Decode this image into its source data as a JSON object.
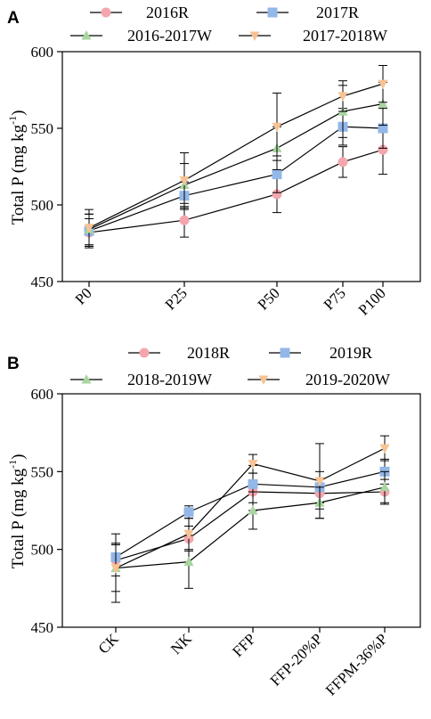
{
  "chart_data": [
    {
      "panel": "A",
      "type": "line",
      "ylabel": "Total P (mg kg",
      "ylabel_sup": "-1",
      "ylabel_close": ")",
      "ylim": [
        450,
        600
      ],
      "yticks": [
        "450",
        "500",
        "550",
        "600"
      ],
      "categories": [
        "P0",
        "P25",
        "P50",
        "P75",
        "P100"
      ],
      "legend": "top, two rows",
      "series": [
        {
          "name": "2016R",
          "marker": "circle",
          "color": "#f4a6ae",
          "values": [
            482,
            490,
            507,
            528,
            536
          ],
          "errors": [
            9,
            11,
            12,
            10,
            16
          ]
        },
        {
          "name": "2017R",
          "marker": "square",
          "color": "#93b7e8",
          "values": [
            483,
            506,
            520,
            551,
            550
          ],
          "errors": [
            11,
            9,
            12,
            12,
            13
          ]
        },
        {
          "name": "2016-2017W",
          "marker": "triangle-up",
          "color": "#a9d6a0",
          "values": [
            484,
            513,
            537,
            561,
            566
          ],
          "errors": [
            10,
            14,
            14,
            17,
            14
          ]
        },
        {
          "name": "2017-2018W",
          "marker": "triangle-down",
          "color": "#f7c394",
          "values": [
            485,
            516,
            551,
            571,
            579
          ],
          "errors": [
            12,
            18,
            22,
            10,
            12
          ]
        }
      ]
    },
    {
      "panel": "B",
      "type": "line",
      "ylabel": "Total P (mg kg",
      "ylabel_sup": "-1",
      "ylabel_close": ")",
      "ylim": [
        450,
        600
      ],
      "yticks": [
        "450",
        "500",
        "550",
        "600"
      ],
      "categories": [
        "CK",
        "NK",
        "FFP",
        "FFP-20%P",
        "FFPM-36%P"
      ],
      "legend": "top, two rows",
      "series": [
        {
          "name": "2018R",
          "marker": "circle",
          "color": "#f4a6ae",
          "values": [
            493,
            507,
            537,
            536,
            537
          ],
          "errors": [
            10,
            8,
            12,
            10,
            8
          ]
        },
        {
          "name": "2019R",
          "marker": "square",
          "color": "#93b7e8",
          "values": [
            495,
            524,
            542,
            540,
            550
          ],
          "errors": [
            9,
            4,
            12,
            10,
            8
          ]
        },
        {
          "name": "2018-2019W",
          "marker": "triangle-up",
          "color": "#a9d6a0",
          "values": [
            488,
            492,
            525,
            530,
            540
          ],
          "errors": [
            22,
            17,
            12,
            10,
            10
          ]
        },
        {
          "name": "2019-2020W",
          "marker": "triangle-down",
          "color": "#f7c394",
          "values": [
            488,
            510,
            555,
            544,
            565
          ],
          "errors": [
            15,
            10,
            6,
            24,
            8
          ]
        }
      ]
    }
  ]
}
